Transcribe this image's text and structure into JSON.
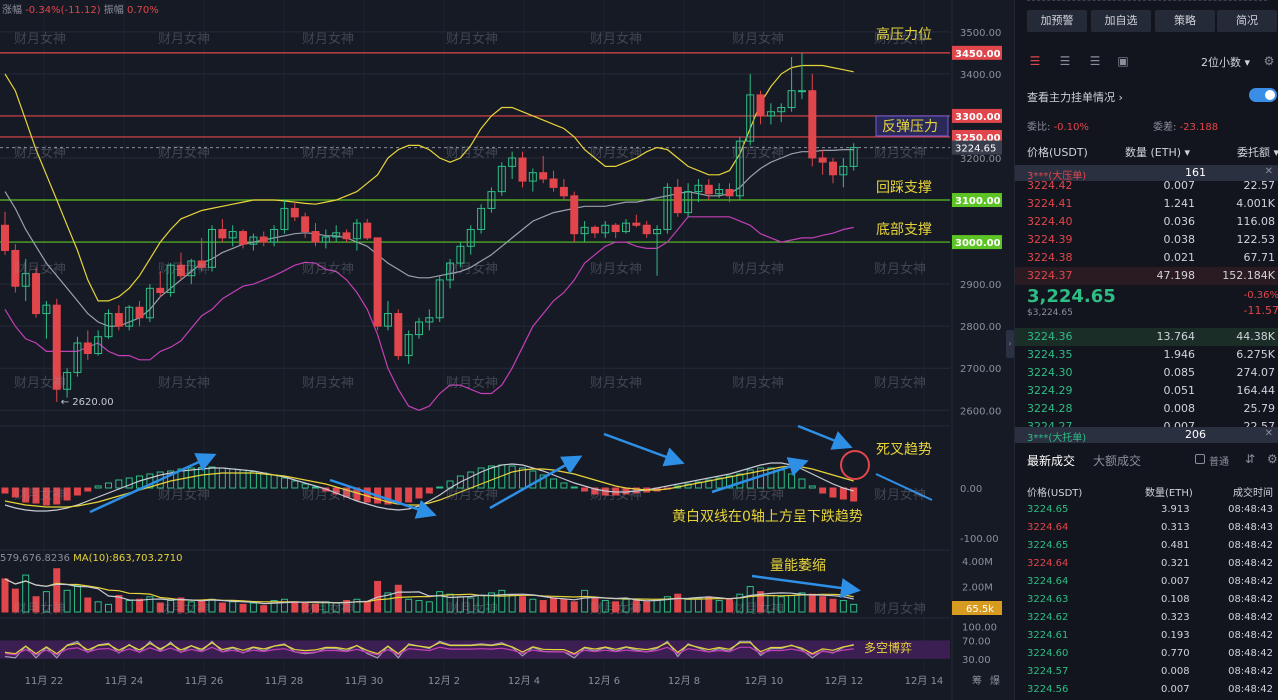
{
  "header": {
    "change_label": "涨幅",
    "change_value": "-0.34%(-11.12)",
    "amp_label": "振幅",
    "amp_value": "0.70%"
  },
  "watermark": "财月女神",
  "chart_data": [
    {
      "type": "candlestick",
      "x_ticks": [
        "11月 22",
        "11月 24",
        "11月 26",
        "11月 28",
        "11月 30",
        "12月 2",
        "12月 4",
        "12月 6",
        "12月 8",
        "12月 10",
        "12月 12",
        "12月 14"
      ],
      "y_ticks": [
        "3500.00",
        "3400.00",
        "3300.00",
        "3200.00",
        "3100.00",
        "3000.00",
        "2900.00",
        "2800.00",
        "2700.00",
        "2600.00"
      ],
      "ylim": [
        2565,
        3540
      ],
      "last_price": "3224.65",
      "low_marker": "← 2620.00",
      "levels": [
        {
          "value": 3450,
          "label": "3450.00",
          "text": "高压力位",
          "color": "#e0464b"
        },
        {
          "value": 3300,
          "label": "3300.00",
          "text": "",
          "color": "#e0464b"
        },
        {
          "value": 3250,
          "label": "3250.00",
          "text": "反弹压力",
          "color": "#e0464b"
        },
        {
          "value": 3100,
          "label": "3100.00",
          "text": "回踩支撑",
          "color": "#5cc424"
        },
        {
          "value": 3000,
          "label": "3000.00",
          "text": "底部支撑",
          "color": "#5cc424"
        }
      ],
      "ohlc": [
        [
          3040,
          3072,
          2970,
          2980
        ],
        [
          2980,
          2995,
          2880,
          2895
        ],
        [
          2895,
          2960,
          2860,
          2925
        ],
        [
          2925,
          2940,
          2820,
          2830
        ],
        [
          2830,
          2860,
          2770,
          2850
        ],
        [
          2850,
          2865,
          2620,
          2650
        ],
        [
          2650,
          2700,
          2630,
          2690
        ],
        [
          2690,
          2775,
          2680,
          2760
        ],
        [
          2760,
          2790,
          2720,
          2735
        ],
        [
          2735,
          2790,
          2730,
          2775
        ],
        [
          2775,
          2840,
          2770,
          2830
        ],
        [
          2830,
          2850,
          2790,
          2800
        ],
        [
          2800,
          2850,
          2790,
          2845
        ],
        [
          2845,
          2860,
          2800,
          2820
        ],
        [
          2820,
          2900,
          2810,
          2890
        ],
        [
          2890,
          2930,
          2870,
          2880
        ],
        [
          2880,
          2950,
          2870,
          2945
        ],
        [
          2945,
          2975,
          2910,
          2920
        ],
        [
          2920,
          2960,
          2900,
          2955
        ],
        [
          2955,
          3010,
          2930,
          2940
        ],
        [
          2940,
          3040,
          2930,
          3030
        ],
        [
          3030,
          3055,
          3000,
          3010
        ],
        [
          3010,
          3040,
          2990,
          3025
        ],
        [
          3025,
          3030,
          2985,
          2995
        ],
        [
          2995,
          3020,
          2980,
          3012
        ],
        [
          3012,
          3025,
          2990,
          3000
        ],
        [
          3000,
          3040,
          2990,
          3030
        ],
        [
          3030,
          3100,
          3020,
          3080
        ],
        [
          3080,
          3095,
          3050,
          3060
        ],
        [
          3060,
          3070,
          3010,
          3025
        ],
        [
          3025,
          3045,
          2990,
          3000
        ],
        [
          3000,
          3030,
          2985,
          3012
        ],
        [
          3012,
          3040,
          3000,
          3022
        ],
        [
          3022,
          3030,
          3000,
          3008
        ],
        [
          3008,
          3055,
          2980,
          3045
        ],
        [
          3045,
          3055,
          3005,
          3010
        ],
        [
          3010,
          3010,
          2790,
          2800
        ],
        [
          2800,
          2860,
          2790,
          2830
        ],
        [
          2830,
          2840,
          2720,
          2730
        ],
        [
          2730,
          2790,
          2710,
          2780
        ],
        [
          2780,
          2820,
          2770,
          2810
        ],
        [
          2810,
          2840,
          2790,
          2820
        ],
        [
          2820,
          2920,
          2810,
          2910
        ],
        [
          2910,
          2960,
          2890,
          2950
        ],
        [
          2950,
          3000,
          2940,
          2990
        ],
        [
          2990,
          3040,
          2970,
          3030
        ],
        [
          3030,
          3090,
          3020,
          3080
        ],
        [
          3080,
          3130,
          3070,
          3120
        ],
        [
          3120,
          3190,
          3110,
          3180
        ],
        [
          3180,
          3215,
          3150,
          3200
        ],
        [
          3200,
          3215,
          3130,
          3145
        ],
        [
          3145,
          3175,
          3120,
          3165
        ],
        [
          3165,
          3205,
          3140,
          3150
        ],
        [
          3150,
          3170,
          3120,
          3130
        ],
        [
          3130,
          3150,
          3100,
          3110
        ],
        [
          3110,
          3120,
          3000,
          3020
        ],
        [
          3020,
          3050,
          3000,
          3035
        ],
        [
          3035,
          3040,
          3010,
          3022
        ],
        [
          3022,
          3050,
          3010,
          3040
        ],
        [
          3040,
          3045,
          3010,
          3025
        ],
        [
          3025,
          3055,
          3020,
          3045
        ],
        [
          3045,
          3065,
          3035,
          3040
        ],
        [
          3040,
          3050,
          3010,
          3020
        ],
        [
          3020,
          3040,
          2920,
          3030
        ],
        [
          3030,
          3140,
          3020,
          3130
        ],
        [
          3130,
          3150,
          3060,
          3070
        ],
        [
          3070,
          3140,
          3060,
          3120
        ],
        [
          3120,
          3150,
          3095,
          3135
        ],
        [
          3135,
          3150,
          3100,
          3115
        ],
        [
          3115,
          3140,
          3105,
          3125
        ],
        [
          3125,
          3140,
          3095,
          3110
        ],
        [
          3110,
          3250,
          3100,
          3240
        ],
        [
          3240,
          3400,
          3230,
          3350
        ],
        [
          3350,
          3360,
          3280,
          3300
        ],
        [
          3300,
          3330,
          3280,
          3310
        ],
        [
          3310,
          3330,
          3285,
          3320
        ],
        [
          3320,
          3440,
          3310,
          3360
        ],
        [
          3360,
          3450,
          3340,
          3360
        ],
        [
          3360,
          3400,
          3180,
          3200
        ],
        [
          3200,
          3220,
          3160,
          3190
        ],
        [
          3190,
          3200,
          3140,
          3160
        ],
        [
          3160,
          3200,
          3130,
          3180
        ],
        [
          3180,
          3235,
          3170,
          3225
        ]
      ],
      "boll_upper": [
        3400,
        3360,
        3290,
        3220,
        3160,
        3100,
        3040,
        2980,
        2910,
        2860,
        2860,
        2870,
        2890,
        2920,
        2960,
        3000,
        3030,
        3055,
        3065,
        3075,
        3080,
        3085,
        3090,
        3095,
        3100,
        3100,
        3100,
        3098,
        3095,
        3092,
        3090,
        3095,
        3100,
        3110,
        3120,
        3140,
        3160,
        3200,
        3220,
        3230,
        3230,
        3220,
        3200,
        3190,
        3200,
        3230,
        3270,
        3300,
        3320,
        3320,
        3310,
        3300,
        3290,
        3280,
        3270,
        3250,
        3220,
        3200,
        3180,
        3180,
        3190,
        3200,
        3215,
        3225,
        3220,
        3200,
        3180,
        3170,
        3160,
        3160,
        3170,
        3210,
        3270,
        3330,
        3370,
        3400,
        3415,
        3420,
        3420,
        3420,
        3415,
        3410,
        3405
      ],
      "boll_mid": [
        3120,
        3080,
        3030,
        2990,
        2950,
        2920,
        2890,
        2860,
        2830,
        2810,
        2800,
        2800,
        2810,
        2820,
        2840,
        2870,
        2890,
        2910,
        2930,
        2950,
        2960,
        2975,
        2985,
        2995,
        3000,
        3005,
        3010,
        3015,
        3020,
        3022,
        3020,
        3015,
        3015,
        3010,
        3000,
        2990,
        2970,
        2950,
        2935,
        2920,
        2915,
        2915,
        2920,
        2925,
        2930,
        2940,
        2955,
        2970,
        2990,
        3010,
        3030,
        3050,
        3060,
        3070,
        3075,
        3080,
        3085,
        3085,
        3085,
        3090,
        3095,
        3095,
        3100,
        3105,
        3110,
        3115,
        3120,
        3115,
        3110,
        3110,
        3115,
        3130,
        3155,
        3175,
        3190,
        3200,
        3210,
        3215,
        3215,
        3218,
        3218,
        3220,
        3220
      ],
      "boll_lower": [
        2840,
        2800,
        2770,
        2760,
        2740,
        2740,
        2740,
        2740,
        2750,
        2760,
        2740,
        2730,
        2730,
        2720,
        2720,
        2740,
        2750,
        2765,
        2795,
        2825,
        2840,
        2865,
        2880,
        2895,
        2900,
        2910,
        2920,
        2932,
        2945,
        2952,
        2950,
        2935,
        2930,
        2910,
        2880,
        2840,
        2780,
        2700,
        2650,
        2610,
        2600,
        2610,
        2640,
        2660,
        2660,
        2650,
        2640,
        2640,
        2660,
        2700,
        2750,
        2800,
        2830,
        2860,
        2880,
        2910,
        2950,
        2970,
        2990,
        3000,
        3000,
        2990,
        2985,
        2985,
        3000,
        3030,
        3060,
        3060,
        3060,
        3060,
        3060,
        3050,
        3040,
        3020,
        3010,
        3000,
        3005,
        3010,
        3010,
        3016,
        3021,
        3030,
        3035
      ]
    },
    {
      "type": "bar",
      "name": "MACD",
      "y_ticks": [
        "0.00",
        "-100.00"
      ],
      "ylim": [
        -120,
        120
      ],
      "values": [
        -10,
        -18,
        -28,
        -30,
        -34,
        -32,
        -24,
        -14,
        -6,
        4,
        10,
        16,
        20,
        24,
        28,
        32,
        34,
        38,
        40,
        41,
        42,
        40,
        38,
        36,
        33,
        30,
        26,
        20,
        14,
        8,
        2,
        -6,
        -12,
        -18,
        -24,
        -28,
        -30,
        -32,
        -32,
        -28,
        -20,
        -10,
        2,
        14,
        24,
        32,
        40,
        44,
        46,
        44,
        40,
        34,
        26,
        18,
        10,
        2,
        -6,
        -12,
        -14,
        -14,
        -12,
        -10,
        -8,
        -6,
        -2,
        4,
        8,
        12,
        16,
        20,
        24,
        28,
        36,
        40,
        40,
        36,
        28,
        18,
        4,
        -10,
        -18,
        -22,
        -26
      ],
      "dif": [
        -34,
        -40,
        -44,
        -46,
        -46,
        -44,
        -40,
        -34,
        -26,
        -18,
        -10,
        -2,
        6,
        14,
        20,
        26,
        30,
        34,
        36,
        38,
        40,
        40,
        38,
        36,
        34,
        30,
        26,
        22,
        16,
        10,
        4,
        -2,
        -10,
        -18,
        -26,
        -32,
        -38,
        -42,
        -44,
        -42,
        -36,
        -26,
        -14,
        0,
        12,
        22,
        32,
        40,
        46,
        48,
        46,
        40,
        34,
        26,
        18,
        10,
        4,
        -2,
        -6,
        -8,
        -8,
        -6,
        -4,
        0,
        4,
        8,
        12,
        16,
        20,
        24,
        28,
        34,
        40,
        46,
        50,
        50,
        46,
        38,
        28,
        18,
        8,
        0,
        -6
      ],
      "dea": [
        -26,
        -30,
        -34,
        -36,
        -38,
        -38,
        -38,
        -36,
        -32,
        -28,
        -22,
        -16,
        -10,
        -4,
        2,
        8,
        14,
        18,
        22,
        26,
        28,
        30,
        30,
        30,
        30,
        28,
        26,
        24,
        20,
        16,
        12,
        8,
        2,
        -4,
        -10,
        -16,
        -22,
        -28,
        -32,
        -34,
        -34,
        -30,
        -24,
        -16,
        -8,
        0,
        8,
        16,
        24,
        32,
        36,
        38,
        38,
        36,
        32,
        28,
        22,
        16,
        10,
        4,
        0,
        -2,
        -4,
        -4,
        -2,
        2,
        6,
        10,
        14,
        18,
        22,
        26,
        30,
        34,
        38,
        42,
        44,
        42,
        38,
        32,
        26,
        20,
        14
      ],
      "annotations": [
        "死叉趋势",
        "黄白双线在0轴上方呈下跌趋势"
      ]
    },
    {
      "type": "bar",
      "name": "Volume",
      "label_head": "579,676.8236",
      "ma_label": "MA(10):863,703.2710",
      "y_ticks": [
        "4.00M",
        "2.00M"
      ],
      "last_tag": "65.5k",
      "ylim": [
        0,
        4.4
      ],
      "values": [
        2.6,
        1.8,
        2.9,
        1.2,
        1.6,
        3.4,
        1.7,
        2.1,
        1.1,
        0.8,
        0.6,
        1.3,
        0.9,
        1.0,
        1.2,
        0.7,
        0.9,
        1.1,
        0.8,
        0.9,
        1.0,
        0.7,
        0.8,
        0.6,
        0.7,
        0.5,
        0.9,
        1.0,
        0.8,
        0.7,
        0.6,
        0.8,
        0.7,
        0.9,
        1.0,
        0.8,
        2.4,
        1.5,
        2.1,
        1.0,
        0.9,
        0.8,
        1.6,
        1.4,
        1.2,
        1.1,
        1.3,
        1.5,
        1.7,
        1.3,
        1.2,
        1.0,
        0.9,
        1.1,
        1.0,
        0.8,
        1.7,
        1.1,
        0.9,
        0.8,
        1.0,
        0.9,
        0.8,
        1.0,
        1.2,
        1.4,
        1.0,
        1.1,
        1.2,
        0.9,
        1.0,
        1.4,
        2.0,
        1.6,
        1.3,
        1.2,
        1.3,
        1.5,
        1.4,
        1.2,
        1.0,
        0.9,
        0.6
      ],
      "annotation": "量能萎缩"
    },
    {
      "type": "line",
      "name": "Oscillator",
      "y_ticks": [
        "100.00",
        "70.00",
        "30.00"
      ],
      "ylim": [
        10,
        110
      ],
      "annotation": "多空博弈"
    }
  ],
  "right_panel": {
    "buttons": [
      "加预警",
      "加自选",
      "策略",
      "简况"
    ],
    "precision": "2位小数",
    "orderbook_title": "查看主力挂单情况",
    "ratio_label": "委比:",
    "ratio_value": "-0.10%",
    "diff_label": "委差:",
    "diff_value": "-23.188",
    "col_price": "价格(USDT)",
    "col_qty": "数量 (ETH)",
    "col_total": "委托额",
    "big_ask": {
      "label": "3***(大压单)",
      "count": "161"
    },
    "asks": [
      [
        "3224.42",
        "0.007",
        "22.57"
      ],
      [
        "3224.41",
        "1.241",
        "4.001K"
      ],
      [
        "3224.40",
        "0.036",
        "116.08"
      ],
      [
        "3224.39",
        "0.038",
        "122.53"
      ],
      [
        "3224.38",
        "0.021",
        "67.71"
      ],
      [
        "3224.37",
        "47.198",
        "152.184K"
      ]
    ],
    "last_price": "3,224.65",
    "last_price_sub": "$3,224.65",
    "change_pct": "-0.36%",
    "change_abs": "-11.57",
    "bids": [
      [
        "3224.36",
        "13.764",
        "44.38K"
      ],
      [
        "3224.35",
        "1.946",
        "6.275K"
      ],
      [
        "3224.30",
        "0.085",
        "274.07"
      ],
      [
        "3224.29",
        "0.051",
        "164.44"
      ],
      [
        "3224.28",
        "0.008",
        "25.79"
      ],
      [
        "3224.27",
        "0.007",
        "22.57"
      ]
    ],
    "big_bid": {
      "label": "3***(大托单)",
      "count": "206"
    },
    "trades_tab": "最新成交",
    "big_trades_tab": "大额成交",
    "normal_label": "普通",
    "trade_col_price": "价格(USDT)",
    "trade_col_qty": "数量(ETH)",
    "trade_col_time": "成交时间",
    "trades": [
      [
        "3224.65",
        "3.913",
        "08:48:43",
        "buy"
      ],
      [
        "3224.64",
        "0.313",
        "08:48:43",
        "sell"
      ],
      [
        "3224.65",
        "0.481",
        "08:48:42",
        "buy"
      ],
      [
        "3224.64",
        "0.321",
        "08:48:42",
        "sell"
      ],
      [
        "3224.64",
        "0.007",
        "08:48:42",
        "buy"
      ],
      [
        "3224.63",
        "0.108",
        "08:48:42",
        "buy"
      ],
      [
        "3224.62",
        "0.323",
        "08:48:42",
        "buy"
      ],
      [
        "3224.61",
        "0.193",
        "08:48:42",
        "buy"
      ],
      [
        "3224.60",
        "0.770",
        "08:48:42",
        "buy"
      ],
      [
        "3224.57",
        "0.008",
        "08:48:42",
        "buy"
      ],
      [
        "3224.56",
        "0.007",
        "08:48:42",
        "buy"
      ]
    ]
  },
  "colors": {
    "up": "#2ebd85",
    "down": "#e0464b",
    "boll_upper": "#e7d43a",
    "boll_mid": "#9ca0ad",
    "boll_lower": "#c23fb5",
    "grid": "#252a37"
  }
}
